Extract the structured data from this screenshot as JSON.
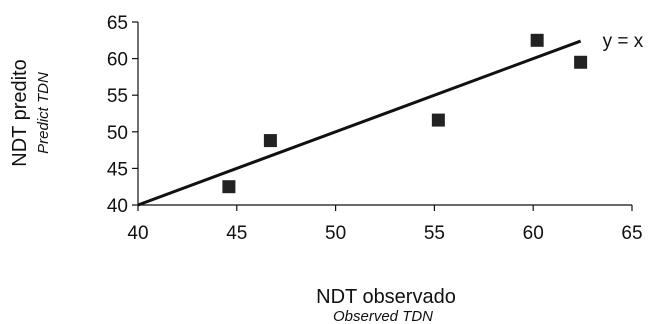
{
  "chart_data": {
    "type": "scatter",
    "xlabel": "NDT observado",
    "xlabel_sub": "Observed TDN",
    "ylabel": "NDT predito",
    "ylabel_sub": "Predict TDN",
    "xlim": [
      40,
      65
    ],
    "ylim": [
      40,
      65
    ],
    "x_ticks": [
      40,
      45,
      50,
      55,
      60,
      65
    ],
    "y_ticks": [
      40,
      45,
      50,
      55,
      60,
      65
    ],
    "points": [
      {
        "x": 44.6,
        "y": 42.5
      },
      {
        "x": 46.7,
        "y": 48.8
      },
      {
        "x": 55.2,
        "y": 51.6
      },
      {
        "x": 60.2,
        "y": 62.5
      },
      {
        "x": 62.4,
        "y": 59.5
      }
    ],
    "line": {
      "label": "y = x",
      "x_start": 40,
      "x_end": 62.4,
      "slope": 1,
      "intercept": 0
    },
    "grid": false,
    "colors": {
      "marker": "#222222",
      "line": "#111111",
      "axis": "#111111"
    }
  }
}
